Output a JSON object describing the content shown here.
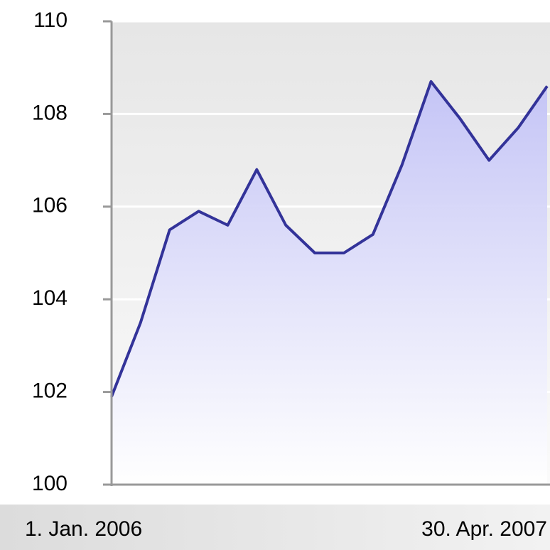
{
  "chart_data": {
    "type": "area",
    "categories": [
      "1. Jan. 2006",
      null,
      null,
      null,
      null,
      null,
      null,
      null,
      null,
      null,
      null,
      null,
      null,
      null,
      null,
      "30. Apr. 2007"
    ],
    "values": [
      101.9,
      103.5,
      105.5,
      105.9,
      105.6,
      106.8,
      105.6,
      105.0,
      105.0,
      105.4,
      106.9,
      108.7,
      107.9,
      107.0,
      107.7,
      108.6
    ],
    "color": "#333399",
    "ylim": [
      100,
      110
    ],
    "yticks": [
      100,
      102,
      104,
      106,
      108,
      110
    ],
    "grid": true
  }
}
